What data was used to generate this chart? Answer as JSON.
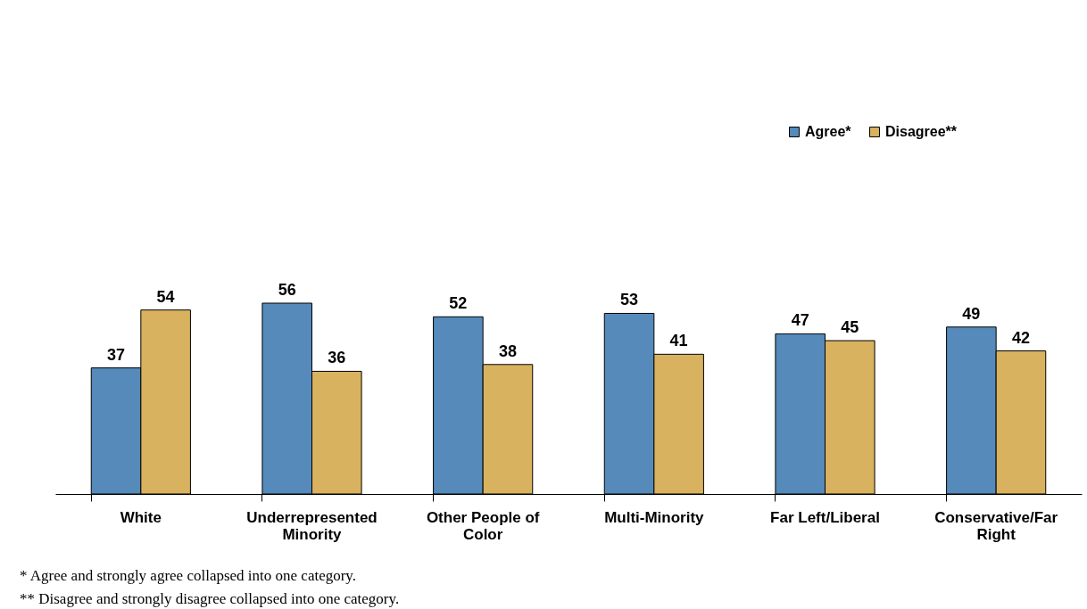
{
  "chart_data": {
    "type": "bar",
    "categories": [
      "White",
      "Underrepresented Minority",
      "Other People of Color",
      "Multi-Minority",
      "Far Left/Liberal",
      "Conservative/Far Right"
    ],
    "series": [
      {
        "name": "Agree*",
        "color": "#558abb",
        "values": [
          37,
          56,
          52,
          53,
          47,
          49
        ]
      },
      {
        "name": "Disagree**",
        "color": "#d9b25f",
        "values": [
          54,
          36,
          38,
          41,
          45,
          42
        ]
      }
    ],
    "data_labels": true,
    "legend": "top right",
    "grid": false,
    "annotations": [
      "* Agree and strongly agree collapsed into one category.",
      "** Disagree and strongly disagree collapsed into one category."
    ]
  }
}
